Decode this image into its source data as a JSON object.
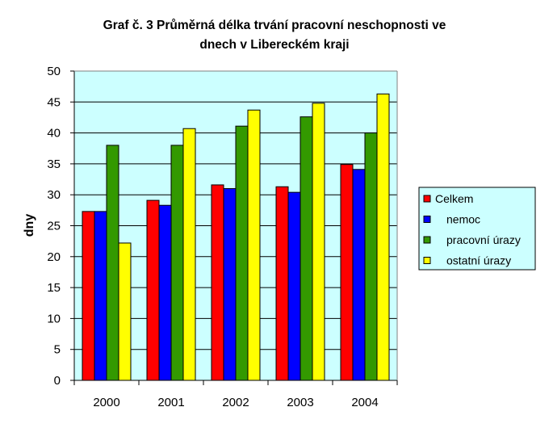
{
  "chart_data": {
    "type": "bar",
    "title_lines": [
      "Graf č. 3 Průměrná délka trvání pracovní neschopnosti ve",
      "dnech v Libereckém kraji"
    ],
    "ylabel": "dny",
    "xlabel": "",
    "ylim": [
      0,
      50
    ],
    "yticks": [
      "0",
      "5",
      "10",
      "15",
      "20",
      "25",
      "30",
      "35",
      "40",
      "45",
      "50"
    ],
    "categories": [
      "2000",
      "2001",
      "2002",
      "2003",
      "2004"
    ],
    "series": [
      {
        "name": "Celkem",
        "color": "#ff0000",
        "values": [
          27.3,
          29.1,
          31.6,
          31.3,
          34.9
        ]
      },
      {
        "name": "nemoc",
        "color": "#0000ff",
        "values": [
          27.3,
          28.3,
          31.0,
          30.4,
          34.1
        ]
      },
      {
        "name": "pracovní úrazy",
        "color": "#339900",
        "values": [
          38.0,
          38.0,
          41.1,
          42.6,
          40.0
        ]
      },
      {
        "name": "ostatní úrazy",
        "color": "#ffff00",
        "values": [
          22.2,
          40.7,
          43.7,
          44.8,
          46.3
        ]
      }
    ],
    "plot_background": "#ccffff",
    "grid": "horizontal",
    "legend_position": "right"
  }
}
